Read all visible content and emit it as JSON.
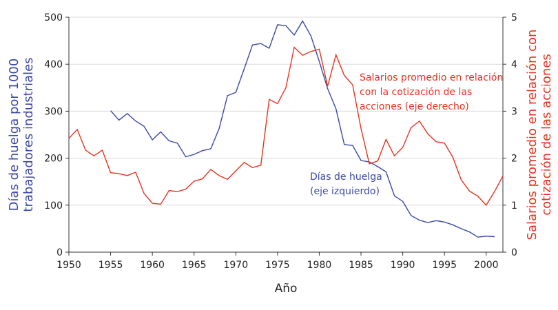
{
  "chart_data": {
    "type": "line",
    "xlabel": "Año",
    "ylabel": [
      "Días de huelga por 1000",
      "trabajadores industriales"
    ],
    "y2label": [
      "Salarios promedio en relación con",
      "cotización de las acciones"
    ],
    "x": [
      1950,
      1951,
      1952,
      1953,
      1954,
      1955,
      1956,
      1957,
      1958,
      1959,
      1960,
      1961,
      1962,
      1963,
      1964,
      1965,
      1966,
      1967,
      1968,
      1969,
      1970,
      1971,
      1972,
      1973,
      1974,
      1975,
      1976,
      1977,
      1978,
      1979,
      1980,
      1981,
      1982,
      1983,
      1984,
      1985,
      1986,
      1987,
      1988,
      1989,
      1990,
      1991,
      1992,
      1993,
      1994,
      1995,
      1996,
      1997,
      1998,
      1999,
      2000,
      2001,
      2002
    ],
    "series": [
      {
        "color": "#3b48a8",
        "axis": "y",
        "values": [
          null,
          null,
          null,
          null,
          null,
          301,
          281,
          295,
          279,
          268,
          239,
          256,
          237,
          232,
          203,
          208,
          216,
          220,
          263,
          333,
          340,
          390,
          441,
          444,
          434,
          484,
          482,
          462,
          492,
          460,
          406,
          348,
          305,
          229,
          227,
          195,
          192,
          182,
          171,
          120,
          108,
          78,
          68,
          63,
          67,
          64,
          58,
          50,
          43,
          32,
          34,
          33,
          null
        ]
      },
      {
        "color": "#e8321f",
        "axis": "y2",
        "values": [
          2.42,
          2.61,
          2.17,
          2.05,
          2.17,
          1.69,
          1.67,
          1.63,
          1.7,
          1.25,
          1.04,
          1.02,
          1.31,
          1.29,
          1.34,
          1.51,
          1.56,
          1.76,
          1.63,
          1.55,
          1.73,
          1.91,
          1.8,
          1.85,
          3.25,
          3.16,
          3.5,
          4.36,
          4.19,
          4.27,
          4.32,
          3.53,
          4.2,
          3.76,
          3.56,
          2.63,
          1.88,
          1.94,
          2.4,
          2.05,
          2.23,
          2.65,
          2.79,
          2.52,
          2.35,
          2.32,
          2.02,
          1.54,
          1.3,
          1.19,
          1.0,
          1.29,
          1.62
        ]
      }
    ],
    "annotations": [
      {
        "color": "#e8321f",
        "lines": [
          "Salarios promedio en relación",
          "con la cotización de las",
          "acciones (eje derecho)"
        ]
      },
      {
        "color": "#3b48a8",
        "lines": [
          "Días de huelga",
          "(eje izquierdo)"
        ]
      }
    ],
    "xlim": [
      1950,
      2002
    ],
    "xticks": [
      1950,
      1955,
      1960,
      1965,
      1970,
      1975,
      1980,
      1985,
      1990,
      1995,
      2000
    ],
    "ylim": [
      0,
      500
    ],
    "yticks": [
      0,
      100,
      200,
      300,
      400,
      500
    ],
    "y2lim": [
      0,
      5
    ],
    "y2ticks": [
      0,
      1,
      2,
      3,
      4,
      5
    ],
    "grid": true
  }
}
